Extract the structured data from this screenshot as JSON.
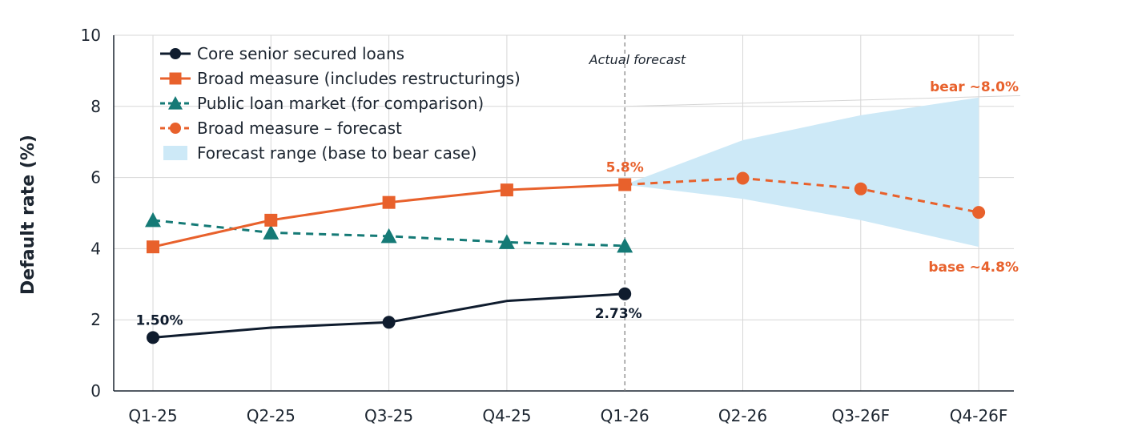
{
  "chart_data": {
    "type": "line",
    "categories": [
      "Q1-25",
      "Q2-25",
      "Q3-25",
      "Q4-25",
      "Q1-26",
      "Q2-26",
      "Q3-26F",
      "Q4-26F"
    ],
    "ylabel": "Default rate (%)",
    "xlabel": "",
    "ylim": [
      0,
      10
    ],
    "yticks": [
      0,
      2,
      4,
      6,
      8,
      10
    ],
    "grid": true,
    "legend_position": "top-left",
    "colors": {
      "core": "#0f1c2e",
      "broad": "#e8612c",
      "public": "#157a76",
      "range": "#cde9f7",
      "grid": "#d7d7d7",
      "divider": "#7a7a7a"
    },
    "series": [
      {
        "name": "Core senior secured loans",
        "values": [
          1.5,
          1.78,
          1.93,
          2.53,
          2.73,
          null,
          null,
          null
        ],
        "markers": [
          true,
          false,
          true,
          false,
          true,
          false,
          false,
          false
        ],
        "marker": "circle",
        "style": "solid"
      },
      {
        "name": "Broad measure (includes restructurings)",
        "values": [
          4.05,
          4.8,
          5.3,
          5.65,
          5.8,
          null,
          null,
          null
        ],
        "marker": "square",
        "style": "solid"
      },
      {
        "name": "Public loan market (for comparison)",
        "values": [
          4.8,
          4.45,
          4.35,
          4.18,
          4.08,
          null,
          null,
          null
        ],
        "marker": "triangle",
        "style": "dashed"
      },
      {
        "name": "Broad measure – forecast",
        "values": [
          null,
          null,
          null,
          null,
          5.8,
          5.98,
          5.68,
          5.02
        ],
        "markers": [
          false,
          false,
          false,
          false,
          false,
          true,
          true,
          true
        ],
        "marker": "circle",
        "style": "dashed"
      }
    ],
    "range": {
      "name": "Forecast range (base to bear case)",
      "x_start": 4,
      "lower": [
        5.8,
        5.4,
        4.8,
        4.05
      ],
      "upper": [
        5.8,
        7.05,
        7.75,
        8.25
      ]
    },
    "annotations": [
      {
        "text": "1.50%",
        "series": 0,
        "index": 0,
        "position": "above"
      },
      {
        "text": "2.73%",
        "series": 0,
        "index": 4,
        "position": "below"
      },
      {
        "text": "5.8%",
        "series": 1,
        "index": 4,
        "position": "above"
      },
      {
        "text": "bear ~8.0%",
        "position": "bear"
      },
      {
        "text": "base ~4.8%",
        "position": "base"
      }
    ],
    "divider": {
      "index": 4,
      "label": "Actual forecast"
    }
  }
}
